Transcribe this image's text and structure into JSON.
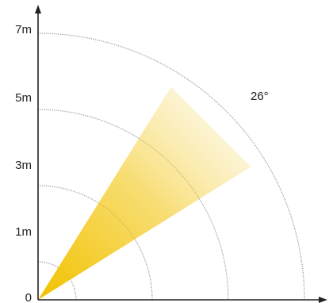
{
  "axis": {
    "tick_labels": [
      "0",
      "1m",
      "3m",
      "5m",
      "7m"
    ],
    "tick_values": [
      0,
      1,
      3,
      5,
      7
    ]
  },
  "beam": {
    "angle_label": "26°",
    "angle_degrees": 26,
    "center_direction_degrees": 45,
    "color_near": "#f2c200",
    "color_far": "#fbecbb"
  },
  "range_arcs": {
    "radii_m": [
      1,
      3,
      5,
      7
    ],
    "color": "#9a9a9a"
  },
  "axis_color": "#222222"
}
